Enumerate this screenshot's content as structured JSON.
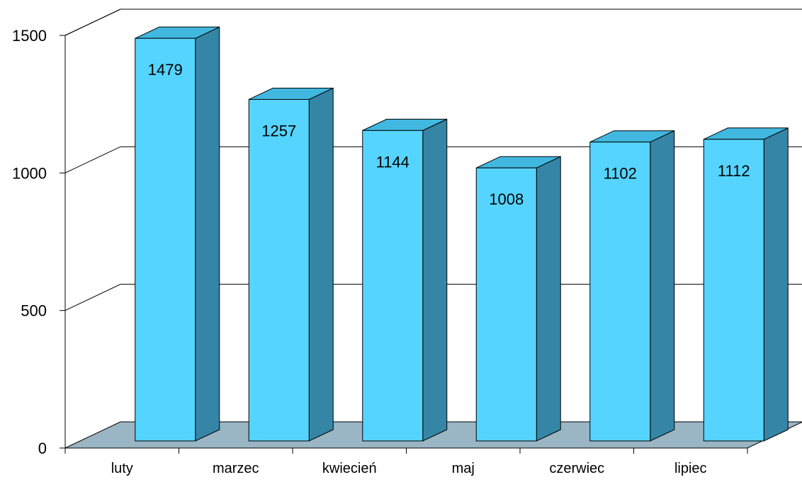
{
  "chart_data": {
    "type": "bar",
    "categories": [
      "luty",
      "marzec",
      "kwiecień",
      "maj",
      "czerwiec",
      "lipiec"
    ],
    "values": [
      1479,
      1257,
      1144,
      1008,
      1102,
      1112
    ],
    "data_labels": [
      "1479",
      "1257",
      "1144",
      "1008",
      "1102",
      "1112"
    ],
    "ylim": [
      0,
      1500
    ],
    "yticks": [
      0,
      500,
      1000,
      1500
    ],
    "ytick_labels": [
      "0",
      "500",
      "1000",
      "1500"
    ],
    "grid": true,
    "three_d": true,
    "title": "",
    "xlabel": "",
    "ylabel": "",
    "colors": {
      "bar_front": "#55D4FF",
      "bar_side": "#3585A6",
      "bar_top": "#41B8E0",
      "floor": "#9AB6C4",
      "grid": "#000000",
      "outline": "#000000"
    }
  }
}
